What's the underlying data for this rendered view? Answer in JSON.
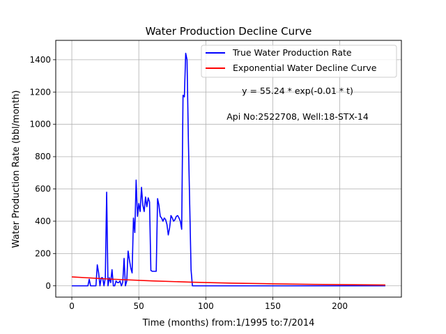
{
  "chart_data": {
    "type": "line",
    "title": "Water Production Decline Curve",
    "xlabel": "Time (months) from:1/1995 to:7/2014",
    "ylabel": "Water Production Rate (bbl/month)",
    "xlim": [
      -12,
      246
    ],
    "ylim": [
      -70,
      1520
    ],
    "xticks": [
      0,
      50,
      100,
      150,
      200
    ],
    "yticks": [
      0,
      200,
      400,
      600,
      800,
      1000,
      1200,
      1400
    ],
    "grid": true,
    "legend_position": "top-right",
    "annotations": [
      "y = 55.24 * exp(-0.01 * t)",
      "Api No:2522708, Well:18-STX-14"
    ],
    "series": [
      {
        "name": "True Water Production Rate",
        "color": "#0000ff",
        "x": [
          0,
          1,
          2,
          3,
          4,
          5,
          6,
          7,
          8,
          9,
          10,
          11,
          12,
          13,
          14,
          15,
          16,
          17,
          18,
          19,
          20,
          21,
          22,
          23,
          24,
          25,
          26,
          27,
          28,
          29,
          30,
          31,
          32,
          33,
          34,
          35,
          36,
          37,
          38,
          39,
          40,
          41,
          42,
          43,
          44,
          45,
          46,
          47,
          48,
          49,
          50,
          51,
          52,
          53,
          54,
          55,
          56,
          57,
          58,
          59,
          60,
          61,
          62,
          63,
          64,
          65,
          66,
          67,
          68,
          69,
          70,
          71,
          72,
          73,
          74,
          75,
          76,
          77,
          78,
          79,
          80,
          81,
          82,
          83,
          84,
          85,
          86,
          87,
          88,
          89,
          90,
          100,
          120,
          140,
          160,
          180,
          200,
          220,
          234
        ],
        "values": [
          0,
          0,
          0,
          0,
          0,
          0,
          0,
          0,
          0,
          0,
          0,
          0,
          0,
          40,
          0,
          0,
          0,
          0,
          0,
          130,
          80,
          0,
          50,
          50,
          0,
          50,
          580,
          0,
          50,
          20,
          100,
          0,
          0,
          30,
          20,
          20,
          30,
          0,
          20,
          170,
          0,
          30,
          215,
          160,
          110,
          80,
          420,
          330,
          655,
          430,
          510,
          460,
          610,
          500,
          460,
          550,
          490,
          545,
          520,
          95,
          90,
          90,
          90,
          90,
          540,
          500,
          430,
          420,
          400,
          420,
          410,
          380,
          315,
          360,
          435,
          420,
          400,
          410,
          430,
          435,
          420,
          400,
          350,
          1180,
          1170,
          1440,
          1400,
          900,
          500,
          100,
          0,
          0,
          0,
          0,
          0,
          0,
          0,
          0,
          0
        ]
      },
      {
        "name": "Exponential Water Decline Curve",
        "color": "#ff0000",
        "equation": {
          "a": 55.24,
          "b": -0.01
        },
        "x": [
          0,
          30,
          60,
          90,
          120,
          150,
          180,
          210,
          234
        ],
        "values": [
          55.24,
          40.9,
          30.3,
          22.5,
          16.6,
          12.3,
          9.1,
          6.8,
          5.3
        ]
      }
    ]
  }
}
